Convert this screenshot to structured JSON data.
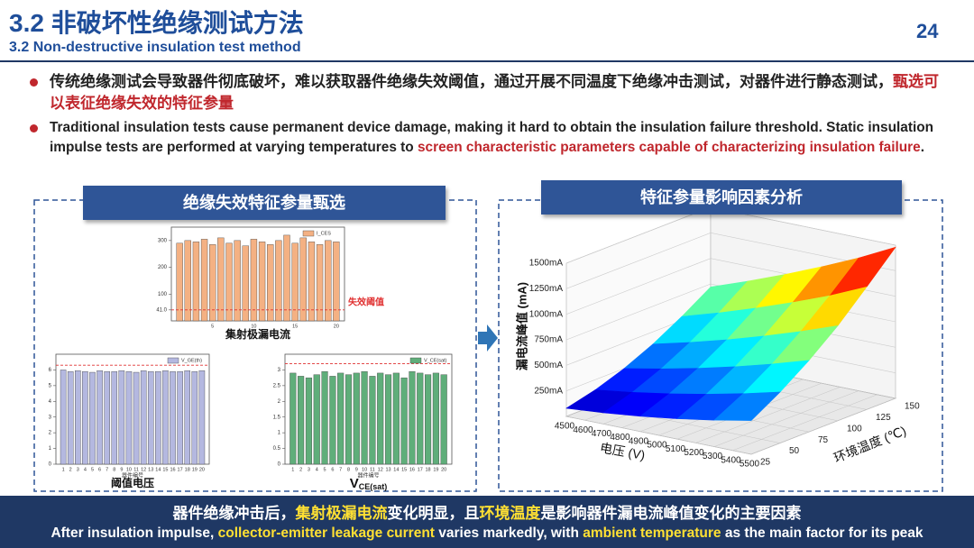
{
  "header": {
    "title": "3.2 非破坏性绝缘测试方法",
    "subtitle": "3.2 Non-destructive insulation test method",
    "page_number": "24"
  },
  "bullets": [
    [
      {
        "text": "传统绝缘测试会导致器件彻底破坏，难以获取器件绝缘失效阈值，通过开展不同温度下绝缘冲击测试，对器件进行静态测试，",
        "highlight": false
      },
      {
        "text": "甄选可以表征绝缘失效的特征参量",
        "highlight": true
      }
    ],
    [
      {
        "text": "Traditional insulation tests cause permanent device damage, making it hard to obtain the insulation failure threshold. Static insulation impulse tests are performed at varying temperatures to ",
        "highlight": false
      },
      {
        "text": "screen characteristic parameters capable of characterizing insulation failure",
        "highlight": true
      },
      {
        "text": ".",
        "highlight": false
      }
    ]
  ],
  "left_panel": {
    "title": "绝缘失效特征参量甄选",
    "charts": [
      {
        "legend": "I_CES",
        "color": "#f4b183",
        "values": [
          290,
          300,
          295,
          305,
          285,
          310,
          290,
          300,
          280,
          305,
          295,
          285,
          300,
          320,
          290,
          310,
          295,
          285,
          300,
          295
        ],
        "ylim": [
          0,
          350
        ],
        "yticks": [
          {
            "value": 41,
            "label": "41.0"
          },
          100,
          200,
          300
        ],
        "xticks": [
          5,
          10,
          15,
          20
        ],
        "threshold": 41,
        "threshold_label": "失效阈值",
        "caption": "集射极漏电流"
      },
      {
        "legend": "V_GE(th)",
        "color": "#b4b8e0",
        "values": [
          6.0,
          5.9,
          5.95,
          5.9,
          5.85,
          5.95,
          5.9,
          5.9,
          5.95,
          5.9,
          5.85,
          5.95,
          5.9,
          5.9,
          5.95,
          5.9,
          5.9,
          5.95,
          5.9,
          5.95
        ],
        "ylim": [
          0,
          7
        ],
        "yticks": [
          0,
          1,
          2,
          3,
          4,
          5,
          6
        ],
        "xticks": [
          1,
          2,
          3,
          4,
          5,
          6,
          7,
          8,
          9,
          10,
          11,
          12,
          13,
          14,
          15,
          16,
          17,
          18,
          19,
          20
        ],
        "threshold": 6.3,
        "x_label": "器件编号",
        "caption": "阈值电压"
      },
      {
        "legend": "V_CE(sat)",
        "color": "#5fae7a",
        "values": [
          2.9,
          2.8,
          2.75,
          2.85,
          2.95,
          2.8,
          2.9,
          2.85,
          2.9,
          2.95,
          2.8,
          2.9,
          2.85,
          2.9,
          2.75,
          2.95,
          2.9,
          2.85,
          2.9,
          2.85
        ],
        "ylim": [
          0,
          3.5
        ],
        "yticks": [
          0,
          0.5,
          1,
          1.5,
          2,
          2.5,
          3
        ],
        "xticks": [
          1,
          2,
          3,
          4,
          5,
          6,
          7,
          8,
          9,
          10,
          11,
          12,
          13,
          14,
          15,
          16,
          17,
          18,
          19,
          20
        ],
        "threshold": 3.2,
        "x_label": "器件编号",
        "caption": "V",
        "caption_sub": "CE(sat)"
      }
    ]
  },
  "right_panel": {
    "title": "特征参量影响因素分析",
    "surface": {
      "x_label": "电压 (V)",
      "y_label": "环境温度 (℃)",
      "z_label": "漏电流峰值 (mA)",
      "vlim": [
        4500,
        5500
      ],
      "tlim": [
        25,
        150
      ],
      "zlim": [
        0,
        1500
      ],
      "vticks": [
        4500,
        4600,
        4700,
        4800,
        4900,
        5000,
        5100,
        5200,
        5300,
        5400,
        5500
      ],
      "tticks": [
        25,
        50,
        75,
        100,
        125,
        150
      ],
      "zticks": [
        {
          "value": 250,
          "label": "250mA"
        },
        {
          "value": 500,
          "label": "500mA"
        },
        {
          "value": 750,
          "label": "750mA"
        },
        {
          "value": 1000,
          "label": "1000mA"
        },
        {
          "value": 1250,
          "label": "1250mA"
        },
        {
          "value": 1500,
          "label": "1500mA"
        }
      ],
      "voltages": [
        4500,
        4700,
        4900,
        5100,
        5300,
        5500
      ],
      "temperatures": [
        25,
        50,
        75,
        100,
        125,
        150
      ],
      "z": [
        [
          80,
          110,
          150,
          200,
          260,
          330
        ],
        [
          150,
          200,
          260,
          330,
          410,
          500
        ],
        [
          250,
          320,
          400,
          490,
          590,
          700
        ],
        [
          380,
          470,
          570,
          680,
          800,
          930
        ],
        [
          540,
          650,
          770,
          900,
          1040,
          1200
        ],
        [
          720,
          850,
          990,
          1140,
          1300,
          1480
        ]
      ]
    }
  },
  "footer": {
    "line1": [
      {
        "text": "器件绝缘冲击后，",
        "highlight": false
      },
      {
        "text": "集射极漏电流",
        "highlight": true
      },
      {
        "text": "变化明显，且",
        "highlight": false
      },
      {
        "text": "环境温度",
        "highlight": true
      },
      {
        "text": "是影响器件漏电流峰值变化的主要因素",
        "highlight": false
      }
    ],
    "line2": [
      {
        "text": "After insulation impulse, ",
        "highlight": false
      },
      {
        "text": "collector-emitter leakage current",
        "highlight": true
      },
      {
        "text": " varies markedly, with ",
        "highlight": false
      },
      {
        "text": "ambient temperature",
        "highlight": true
      },
      {
        "text": " as the main factor for its peak",
        "highlight": false
      }
    ]
  }
}
